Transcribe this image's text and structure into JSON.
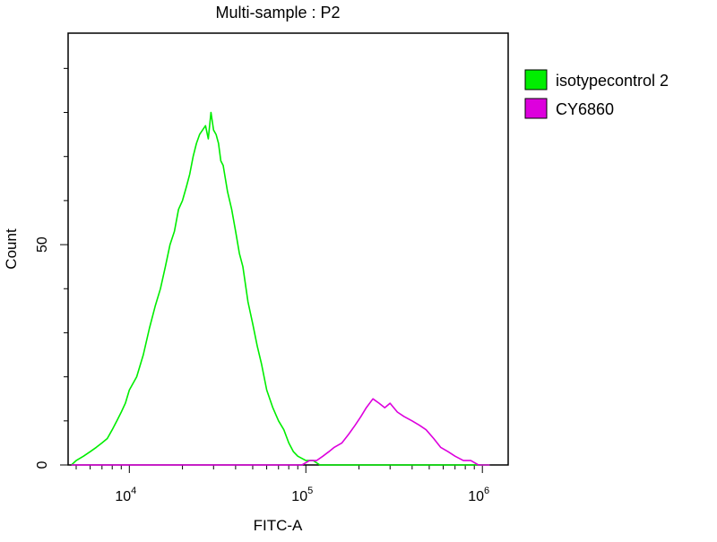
{
  "chart_data": {
    "type": "line",
    "title": "Multi-sample : P2",
    "xlabel": "FITC-A",
    "ylabel": "Count",
    "x_scale": "log",
    "xlim": [
      4500,
      1400000
    ],
    "ylim": [
      0,
      98
    ],
    "grid": false,
    "legend_position": "top-right outside plot",
    "x_ticks": [
      {
        "value": 10000,
        "base": "10",
        "exp": "4"
      },
      {
        "value": 100000,
        "base": "10",
        "exp": "5"
      },
      {
        "value": 1000000,
        "base": "10",
        "exp": "6"
      }
    ],
    "y_ticks": [
      {
        "value": 0,
        "label": "0"
      },
      {
        "value": 50,
        "label": "50"
      }
    ],
    "series": [
      {
        "name": "isotypecontrol 2",
        "color": "#00ee00",
        "x": [
          4700,
          5000,
          5500,
          6000,
          6500,
          7000,
          7500,
          8000,
          8500,
          9000,
          9500,
          10000,
          11000,
          12000,
          13000,
          14000,
          15000,
          16000,
          17000,
          18000,
          19000,
          20000,
          21000,
          22000,
          23000,
          24000,
          25000,
          26000,
          27000,
          28000,
          29000,
          30000,
          31000,
          32000,
          33000,
          34000,
          36000,
          38000,
          40000,
          42000,
          44000,
          47000,
          50000,
          53000,
          56000,
          60000,
          65000,
          70000,
          75000,
          80000,
          85000,
          90000,
          100000,
          110000,
          120000,
          140000,
          160000,
          200000,
          300000,
          500000,
          800000,
          1100000
        ],
        "values": [
          0,
          1,
          2,
          3,
          4,
          5,
          6,
          8,
          10,
          12,
          14,
          17,
          20,
          25,
          31,
          36,
          40,
          45,
          50,
          53,
          58,
          60,
          63,
          66,
          70,
          73,
          75,
          76,
          77,
          74,
          80,
          76,
          75,
          73,
          69,
          68,
          62,
          58,
          53,
          48,
          45,
          37,
          32,
          27,
          23,
          17,
          13,
          10,
          8,
          5,
          3,
          2,
          1,
          1,
          0,
          0,
          0,
          0,
          0,
          0,
          0,
          0
        ]
      },
      {
        "name": "CY6860",
        "color": "#dd00dd",
        "x": [
          4700,
          50000,
          80000,
          95000,
          105000,
          115000,
          125000,
          135000,
          145000,
          160000,
          175000,
          190000,
          205000,
          220000,
          240000,
          260000,
          280000,
          300000,
          330000,
          360000,
          400000,
          440000,
          480000,
          530000,
          580000,
          640000,
          700000,
          780000,
          860000,
          950000,
          1100000
        ],
        "values": [
          0,
          0,
          0,
          0,
          1,
          1,
          2,
          3,
          4,
          5,
          7,
          9,
          11,
          13,
          15,
          14,
          13,
          14,
          12,
          11,
          10,
          9,
          8,
          6,
          4,
          3,
          2,
          1,
          1,
          0,
          0
        ]
      }
    ]
  }
}
